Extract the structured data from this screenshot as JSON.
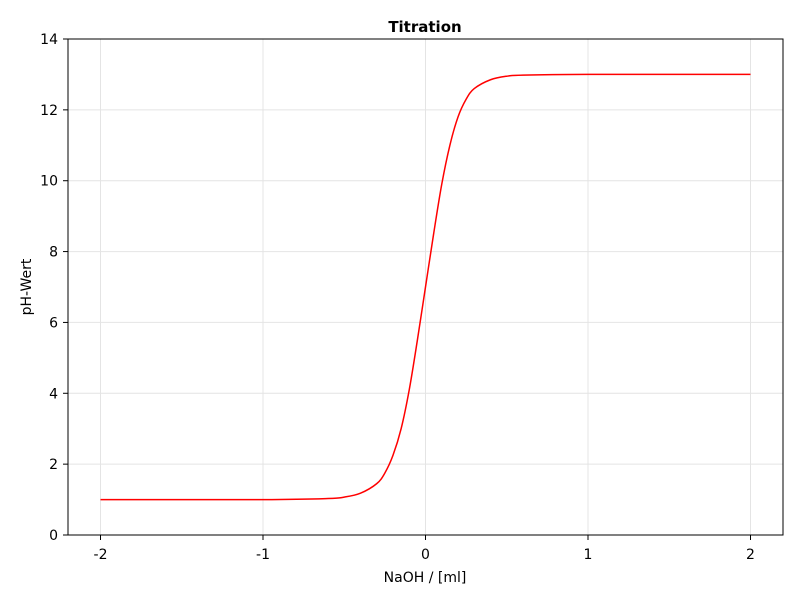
{
  "chart_data": {
    "type": "line",
    "title": "Titration",
    "xlabel": "NaOH / [ml]",
    "ylabel": "pH-Wert",
    "xlim": [
      -2.2,
      2.2
    ],
    "ylim": [
      0,
      14
    ],
    "x_ticks": [
      -2,
      -1,
      0,
      1,
      2
    ],
    "y_ticks": [
      0,
      2,
      4,
      6,
      8,
      10,
      12,
      14
    ],
    "grid": true,
    "series": [
      {
        "color": "#ff0000",
        "x": [
          -2.0,
          -1.0,
          -0.6,
          -0.5,
          -0.4,
          -0.3,
          -0.25,
          -0.2,
          -0.15,
          -0.1,
          -0.05,
          0.0,
          0.05,
          0.1,
          0.15,
          0.2,
          0.25,
          0.3,
          0.4,
          0.5,
          0.6,
          1.0,
          2.0
        ],
        "y": [
          1.0,
          1.0,
          1.03,
          1.07,
          1.18,
          1.45,
          1.75,
          2.25,
          3.0,
          4.1,
          5.5,
          7.0,
          8.5,
          9.9,
          11.0,
          11.8,
          12.3,
          12.6,
          12.85,
          12.95,
          12.98,
          13.0,
          13.0
        ]
      }
    ]
  }
}
